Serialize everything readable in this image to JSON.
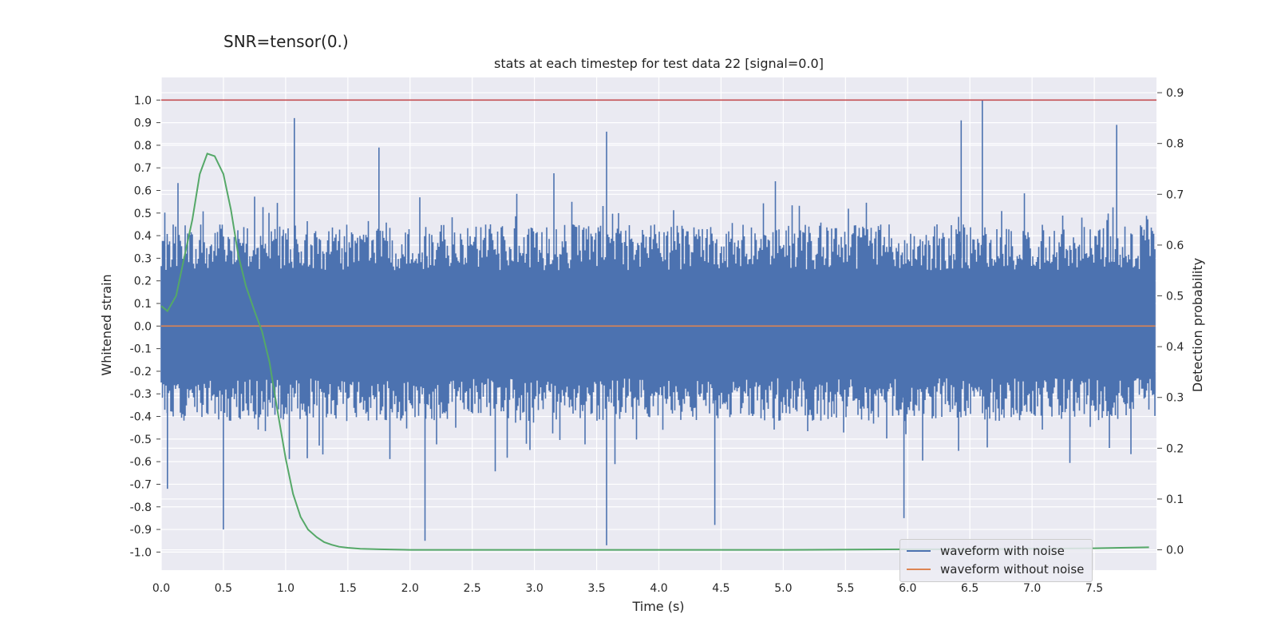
{
  "figure": {
    "suptitle": "SNR=tensor(0.)",
    "title": "stats at each timestep for test data 22 [signal=0.0]"
  },
  "legend": {
    "items": [
      {
        "label": "waveform with noise",
        "color": "#4c72b0"
      },
      {
        "label": "waveform without noise",
        "color": "#dd8452"
      }
    ]
  },
  "chart_data": {
    "type": "line",
    "title": "stats at each timestep for test data 22 [signal=0.0]",
    "xlabel": "Time (s)",
    "ylabel": "Whitened strain",
    "y2label": "Detection probability",
    "xlim": [
      0.0,
      8.0
    ],
    "ylim": [
      -1.08,
      1.1
    ],
    "y2lim": [
      -0.04,
      0.93
    ],
    "x_ticks": [
      "0.0",
      "0.5",
      "1.0",
      "1.5",
      "2.0",
      "2.5",
      "3.0",
      "3.5",
      "4.0",
      "4.5",
      "5.0",
      "5.5",
      "6.0",
      "6.5",
      "7.0",
      "7.5"
    ],
    "y_ticks": [
      "1.0",
      "0.9",
      "0.8",
      "0.7",
      "0.6",
      "0.5",
      "0.4",
      "0.3",
      "0.2",
      "0.1",
      "0.0",
      "-0.1",
      "-0.2",
      "-0.3",
      "-0.4",
      "-0.5",
      "-0.6",
      "-0.7",
      "-0.8",
      "-0.9",
      "-1.0"
    ],
    "y2_ticks": [
      "0.9",
      "0.8",
      "0.7",
      "0.6",
      "0.5",
      "0.4",
      "0.3",
      "0.2",
      "0.1",
      "0.0"
    ],
    "grid": true,
    "legend_position": "lower-right",
    "threshold_line": {
      "y": 1.0,
      "color": "#c44e52"
    },
    "series": [
      {
        "name": "waveform with noise",
        "color": "#4c72b0",
        "axis": "left",
        "x_range": [
          0.0,
          7.99
        ],
        "envelope": {
          "typical_max": 0.45,
          "typical_min": -0.42,
          "peaks": [
            {
              "x": 0.05,
              "y": -0.72
            },
            {
              "x": 0.5,
              "y": -0.9
            },
            {
              "x": 1.07,
              "y": 0.92
            },
            {
              "x": 1.75,
              "y": 0.79
            },
            {
              "x": 2.12,
              "y": -0.95
            },
            {
              "x": 3.58,
              "y": 0.86
            },
            {
              "x": 3.58,
              "y": -0.97
            },
            {
              "x": 4.45,
              "y": -0.88
            },
            {
              "x": 5.97,
              "y": -0.85
            },
            {
              "x": 6.43,
              "y": 0.91
            },
            {
              "x": 6.6,
              "y": 1.0
            },
            {
              "x": 7.68,
              "y": 0.89
            }
          ]
        }
      },
      {
        "name": "waveform without noise",
        "color": "#dd8452",
        "axis": "left",
        "x": [
          0.0,
          7.99
        ],
        "y": [
          0.0,
          0.0
        ]
      },
      {
        "name": "",
        "color": "#55a868",
        "axis": "right",
        "x": [
          0.0,
          0.05,
          0.12,
          0.18,
          0.25,
          0.31,
          0.37,
          0.43,
          0.5,
          0.56,
          0.62,
          0.68,
          0.75,
          0.81,
          0.87,
          0.93,
          1.0,
          1.06,
          1.12,
          1.18,
          1.25,
          1.31,
          1.37,
          1.43,
          1.5,
          1.6,
          1.75,
          2.0,
          2.5,
          3.0,
          4.0,
          5.0,
          6.0,
          6.5,
          7.0,
          7.5,
          7.94
        ],
        "y": [
          0.48,
          0.47,
          0.5,
          0.57,
          0.65,
          0.74,
          0.78,
          0.775,
          0.74,
          0.67,
          0.58,
          0.52,
          0.47,
          0.43,
          0.37,
          0.28,
          0.18,
          0.11,
          0.065,
          0.04,
          0.025,
          0.015,
          0.01,
          0.006,
          0.004,
          0.002,
          0.001,
          0.0,
          0.0,
          0.0,
          0.0,
          0.0,
          0.001,
          0.001,
          0.002,
          0.003,
          0.005
        ]
      }
    ]
  }
}
